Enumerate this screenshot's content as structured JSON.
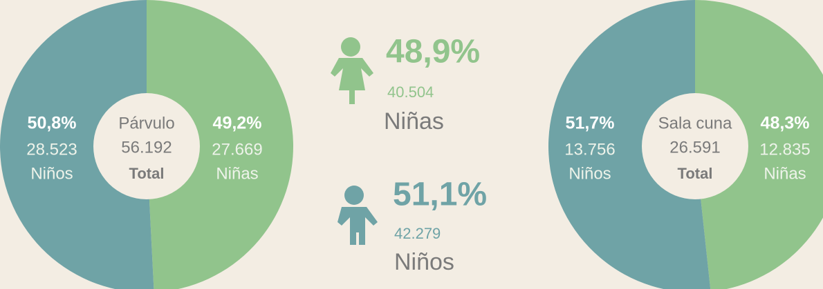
{
  "chart_data": [
    {
      "type": "pie",
      "categories": [
        "Niños",
        "Niñas"
      ],
      "values": [
        50.8,
        49.2
      ],
      "value_labels": [
        "50,8%",
        "49,2%"
      ],
      "count_labels": [
        "28.523",
        "27.669"
      ],
      "colors": [
        "#6fa3a6",
        "#91c48c"
      ],
      "center_label": "Párvulo",
      "center_value": "56.192",
      "center_note": "Total"
    },
    {
      "type": "pie",
      "categories": [
        "Niños",
        "Niñas"
      ],
      "values": [
        51.7,
        48.3
      ],
      "value_labels": [
        "51,7%",
        "48,3%"
      ],
      "count_labels": [
        "13.756",
        "12.835"
      ],
      "colors": [
        "#6fa3a6",
        "#91c48c"
      ],
      "center_label": "Sala cuna",
      "center_value": "26.591",
      "center_note": "Total"
    }
  ],
  "summary": [
    {
      "percent": "48,9%",
      "count": "40.504",
      "label": "Niñas"
    },
    {
      "percent": "51,1%",
      "count": "42.279",
      "label": "Niños"
    }
  ]
}
